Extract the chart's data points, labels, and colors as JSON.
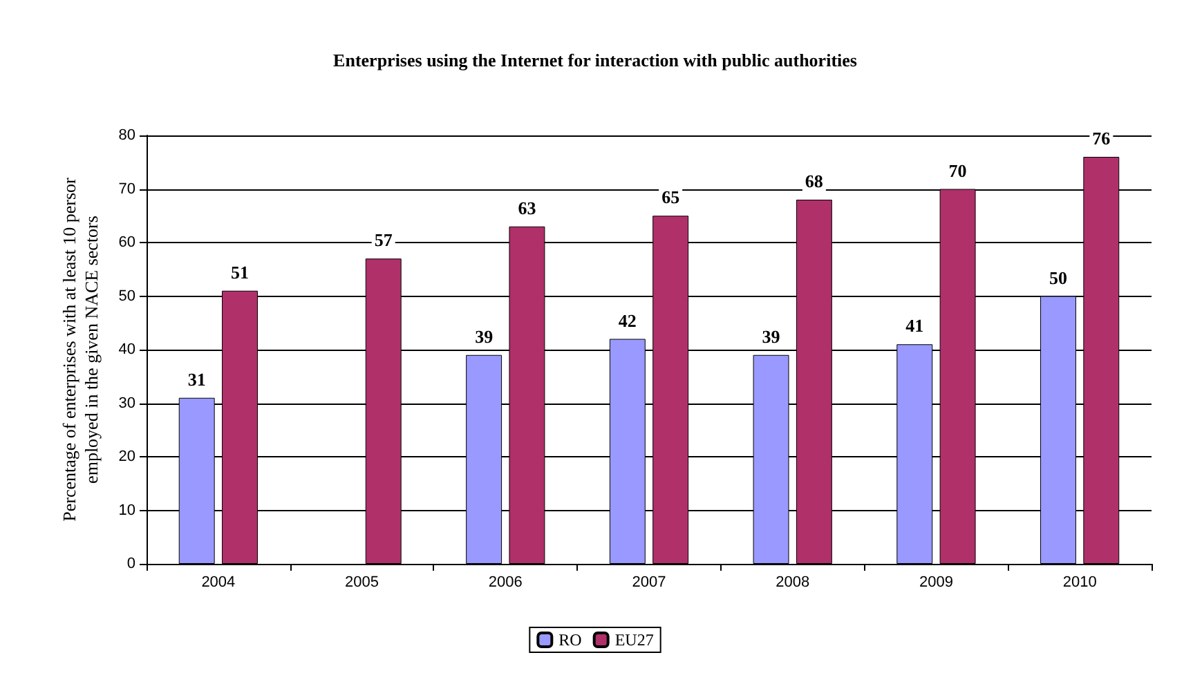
{
  "chart_data": {
    "type": "bar",
    "title": "Enterprises using the Internet for interaction with public authorities",
    "ylabel": "Percentage of enterprises with at least 10 persor\nemployed in the given NACE sectors",
    "categories": [
      "2004",
      "2005",
      "2006",
      "2007",
      "2008",
      "2009",
      "2010"
    ],
    "series": [
      {
        "name": "RO",
        "color": "#9999ff",
        "values": [
          31,
          null,
          39,
          42,
          39,
          41,
          50
        ]
      },
      {
        "name": "EU27",
        "color": "#b0306a",
        "values": [
          51,
          57,
          63,
          65,
          68,
          70,
          76
        ]
      }
    ],
    "ylim": [
      0,
      80
    ],
    "yticks": [
      0,
      10,
      20,
      30,
      40,
      50,
      60,
      70,
      80
    ],
    "grid": "y",
    "legend": "bottom",
    "data_labels": true
  }
}
